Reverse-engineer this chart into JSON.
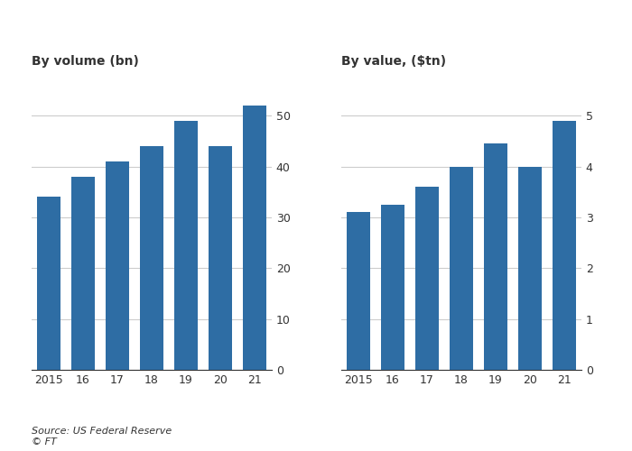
{
  "left_title": "By volume (bn)",
  "right_title": "By value, ($tn)",
  "categories": [
    "2015",
    "16",
    "17",
    "18",
    "19",
    "20",
    "21"
  ],
  "volume_values": [
    34,
    38,
    41,
    44,
    49,
    44,
    52
  ],
  "value_values": [
    3.1,
    3.25,
    3.6,
    4.0,
    4.45,
    4.0,
    4.9
  ],
  "bar_color": "#2e6da4",
  "volume_ylim": [
    0,
    55
  ],
  "volume_yticks": [
    0,
    10,
    20,
    30,
    40,
    50
  ],
  "value_ylim": [
    0,
    5.5
  ],
  "value_yticks": [
    0,
    1,
    2,
    3,
    4,
    5
  ],
  "source_text": "Source: US Federal Reserve\n© FT",
  "background_color": "#ffffff",
  "text_color": "#333333",
  "grid_color": "#cccccc",
  "title_fontsize": 10,
  "tick_fontsize": 9,
  "source_fontsize": 8
}
